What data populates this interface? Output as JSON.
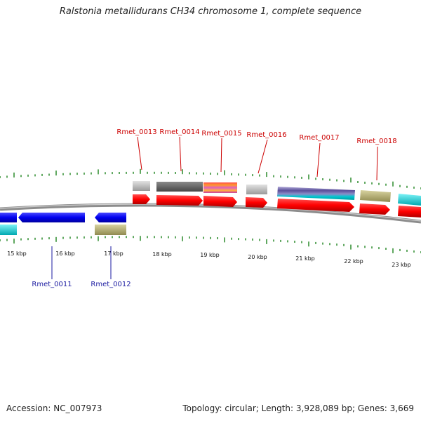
{
  "title": "Ralstonia metallidurans CH34 chromosome 1, complete sequence",
  "accession_text": "Accession: NC_007973",
  "summary_text": "Topology: circular; Length: 3,928,089 bp; Genes: 3,669",
  "kbp_labels": [
    "15 kbp",
    "16 kbp",
    "17 kbp",
    "18 kbp",
    "19 kbp",
    "20 kbp",
    "21 kbp",
    "22 kbp",
    "23 kbp"
  ],
  "forward_genes": [
    {
      "label": "Rmet_0013"
    },
    {
      "label": "Rmet_0014"
    },
    {
      "label": "Rmet_0015"
    },
    {
      "label": "Rmet_0016"
    },
    {
      "label": "Rmet_0017"
    },
    {
      "label": "Rmet_0018"
    }
  ],
  "reverse_genes": [
    {
      "label": "Rmet_0011"
    },
    {
      "label": "Rmet_0012"
    }
  ],
  "colors": {
    "forward_cds": "#ff0000",
    "reverse_cds": "#0000ee",
    "backbone": "#8c8c8c",
    "tick": "#2a8a2a",
    "cog_cyan": "#00d8e0",
    "cog_olive": "#bdb87a",
    "cog_gray": "#c4c4c4",
    "cog_dark": "#6a6a6a"
  }
}
